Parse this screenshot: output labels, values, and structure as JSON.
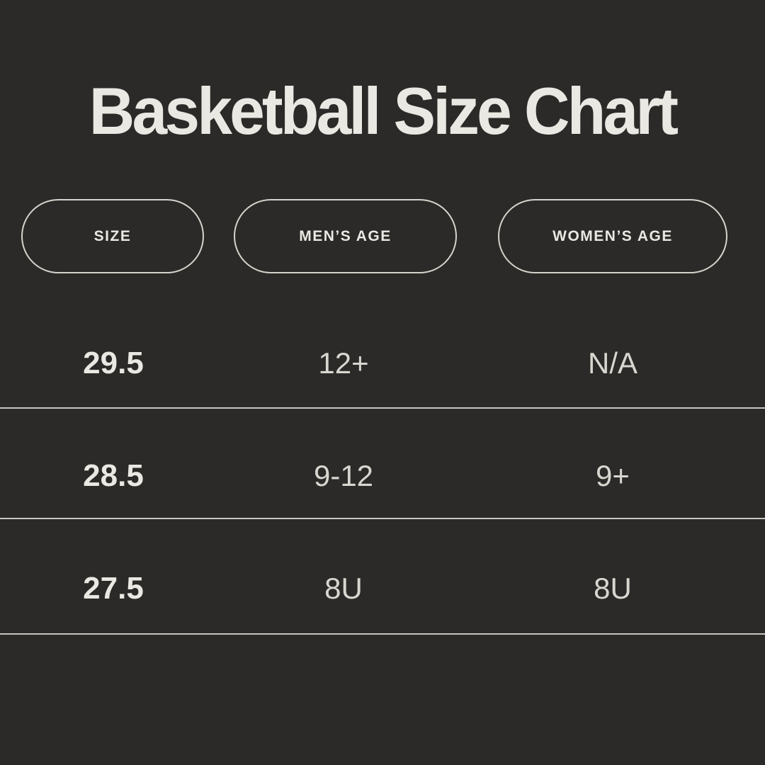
{
  "title": "Basketball Size Chart",
  "colors": {
    "background": "#2b2a28",
    "text-primary": "#eae8e2",
    "text-secondary": "#d9d6d0",
    "line": "#d6d3cc"
  },
  "chart_data": {
    "type": "table",
    "title": "Basketball Size Chart",
    "columns": [
      "SIZE",
      "MEN’S AGE",
      "WOMEN’S AGE"
    ],
    "rows": [
      [
        "29.5",
        "12+",
        "N/A"
      ],
      [
        "28.5",
        "9-12",
        "9+"
      ],
      [
        "27.5",
        "8U",
        "8U"
      ]
    ],
    "layout_hints": {
      "header_style": "outlined-pill",
      "row_dividers": true,
      "theme": "dark"
    }
  }
}
